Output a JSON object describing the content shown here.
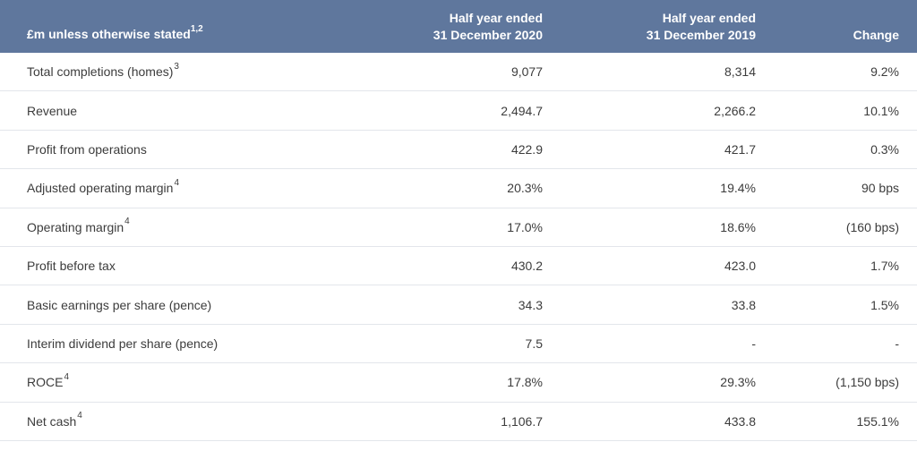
{
  "header": {
    "label": "£m unless otherwise stated",
    "label_sup": "1,2",
    "col1_line1": "Half year ended",
    "col1_line2": "31 December 2020",
    "col2_line1": "Half year ended",
    "col2_line2": "31 December 2019",
    "col3": "Change"
  },
  "rows": [
    {
      "label": "Total completions (homes)",
      "sup": "3",
      "v2020": "9,077",
      "v2019": "8,314",
      "change": "9.2%"
    },
    {
      "label": "Revenue",
      "sup": "",
      "v2020": "2,494.7",
      "v2019": "2,266.2",
      "change": "10.1%"
    },
    {
      "label": "Profit from operations",
      "sup": "",
      "v2020": "422.9",
      "v2019": "421.7",
      "change": "0.3%"
    },
    {
      "label": "Adjusted operating margin",
      "sup": "4",
      "v2020": "20.3%",
      "v2019": "19.4%",
      "change": "90 bps"
    },
    {
      "label": "Operating margin",
      "sup": "4",
      "v2020": "17.0%",
      "v2019": "18.6%",
      "change": "(160 bps)"
    },
    {
      "label": "Profit before tax",
      "sup": "",
      "v2020": "430.2",
      "v2019": "423.0",
      "change": "1.7%"
    },
    {
      "label": "Basic earnings per share (pence)",
      "sup": "",
      "v2020": "34.3",
      "v2019": "33.8",
      "change": "1.5%"
    },
    {
      "label": "Interim dividend per share (pence)",
      "sup": "",
      "v2020": "7.5",
      "v2019": "-",
      "change": "-"
    },
    {
      "label": "ROCE",
      "sup": "4",
      "v2020": "17.8%",
      "v2019": "29.3%",
      "change": "(1,150 bps)"
    },
    {
      "label": "Net cash",
      "sup": "4",
      "v2020": "1,106.7",
      "v2019": "433.8",
      "change": "155.1%"
    }
  ],
  "colors": {
    "header_bg": "#5f779d",
    "header_text": "#ffffff",
    "row_divider": "#e3e6eb"
  }
}
